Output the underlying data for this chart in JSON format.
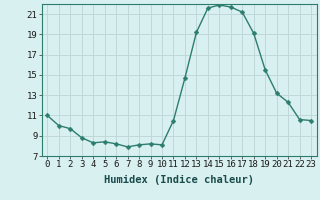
{
  "x": [
    0,
    1,
    2,
    3,
    4,
    5,
    6,
    7,
    8,
    9,
    10,
    11,
    12,
    13,
    14,
    15,
    16,
    17,
    18,
    19,
    20,
    21,
    22,
    23
  ],
  "y": [
    11.0,
    10.0,
    9.7,
    8.8,
    8.3,
    8.4,
    8.2,
    7.9,
    8.1,
    8.2,
    8.1,
    10.5,
    14.7,
    19.2,
    21.6,
    21.9,
    21.7,
    21.2,
    19.1,
    15.5,
    13.2,
    12.3,
    10.6,
    10.5
  ],
  "line_color": "#2d7d6e",
  "marker": "D",
  "markersize": 2.5,
  "linewidth": 1.0,
  "bg_color": "#d8f0f0",
  "grid_color": "#c0d8d8",
  "xlabel": "Humidex (Indice chaleur)",
  "xlabel_fontsize": 7.5,
  "tick_fontsize": 6.5,
  "xlim": [
    -0.5,
    23.5
  ],
  "ylim": [
    7,
    22
  ],
  "yticks": [
    7,
    9,
    11,
    13,
    15,
    17,
    19,
    21
  ],
  "xticks": [
    0,
    1,
    2,
    3,
    4,
    5,
    6,
    7,
    8,
    9,
    10,
    11,
    12,
    13,
    14,
    15,
    16,
    17,
    18,
    19,
    20,
    21,
    22,
    23
  ]
}
